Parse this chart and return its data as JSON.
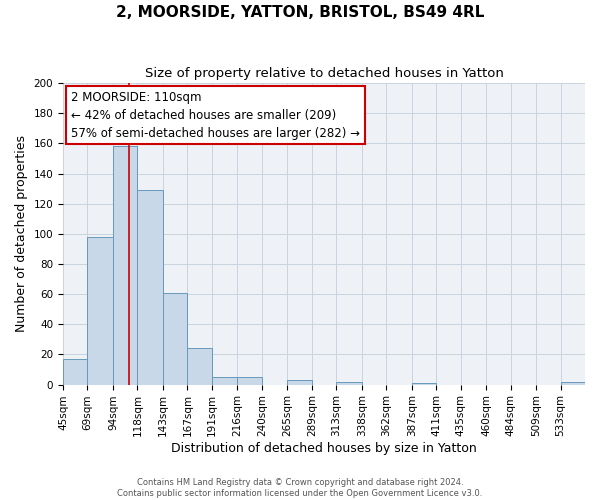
{
  "title": "2, MOORSIDE, YATTON, BRISTOL, BS49 4RL",
  "subtitle": "Size of property relative to detached houses in Yatton",
  "xlabel": "Distribution of detached houses by size in Yatton",
  "ylabel": "Number of detached properties",
  "bin_edges": [
    45,
    69,
    94,
    118,
    143,
    167,
    191,
    216,
    240,
    265,
    289,
    313,
    338,
    362,
    387,
    411,
    435,
    460,
    484,
    509,
    533,
    557
  ],
  "counts": [
    17,
    98,
    158,
    129,
    61,
    24,
    5,
    5,
    0,
    3,
    0,
    2,
    0,
    0,
    1,
    0,
    0,
    0,
    0,
    0,
    2
  ],
  "bar_color": "#c8d8e8",
  "bar_edge_color": "#6699bb",
  "grid_color": "#c8d4de",
  "background_color": "#eef2f7",
  "property_size": 110,
  "red_line_color": "#cc0000",
  "annotation_line1": "2 MOORSIDE: 110sqm",
  "annotation_line2": "← 42% of detached houses are smaller (209)",
  "annotation_line3": "57% of semi-detached houses are larger (282) →",
  "annotation_box_edge": "#cc0000",
  "ylim": [
    0,
    200
  ],
  "yticks": [
    0,
    20,
    40,
    60,
    80,
    100,
    120,
    140,
    160,
    180,
    200
  ],
  "footer_line1": "Contains HM Land Registry data © Crown copyright and database right 2024.",
  "footer_line2": "Contains public sector information licensed under the Open Government Licence v3.0.",
  "title_fontsize": 11,
  "subtitle_fontsize": 9.5,
  "xlabel_fontsize": 9,
  "ylabel_fontsize": 9,
  "tick_fontsize": 7.5,
  "annotation_fontsize": 8.5,
  "footer_fontsize": 6
}
